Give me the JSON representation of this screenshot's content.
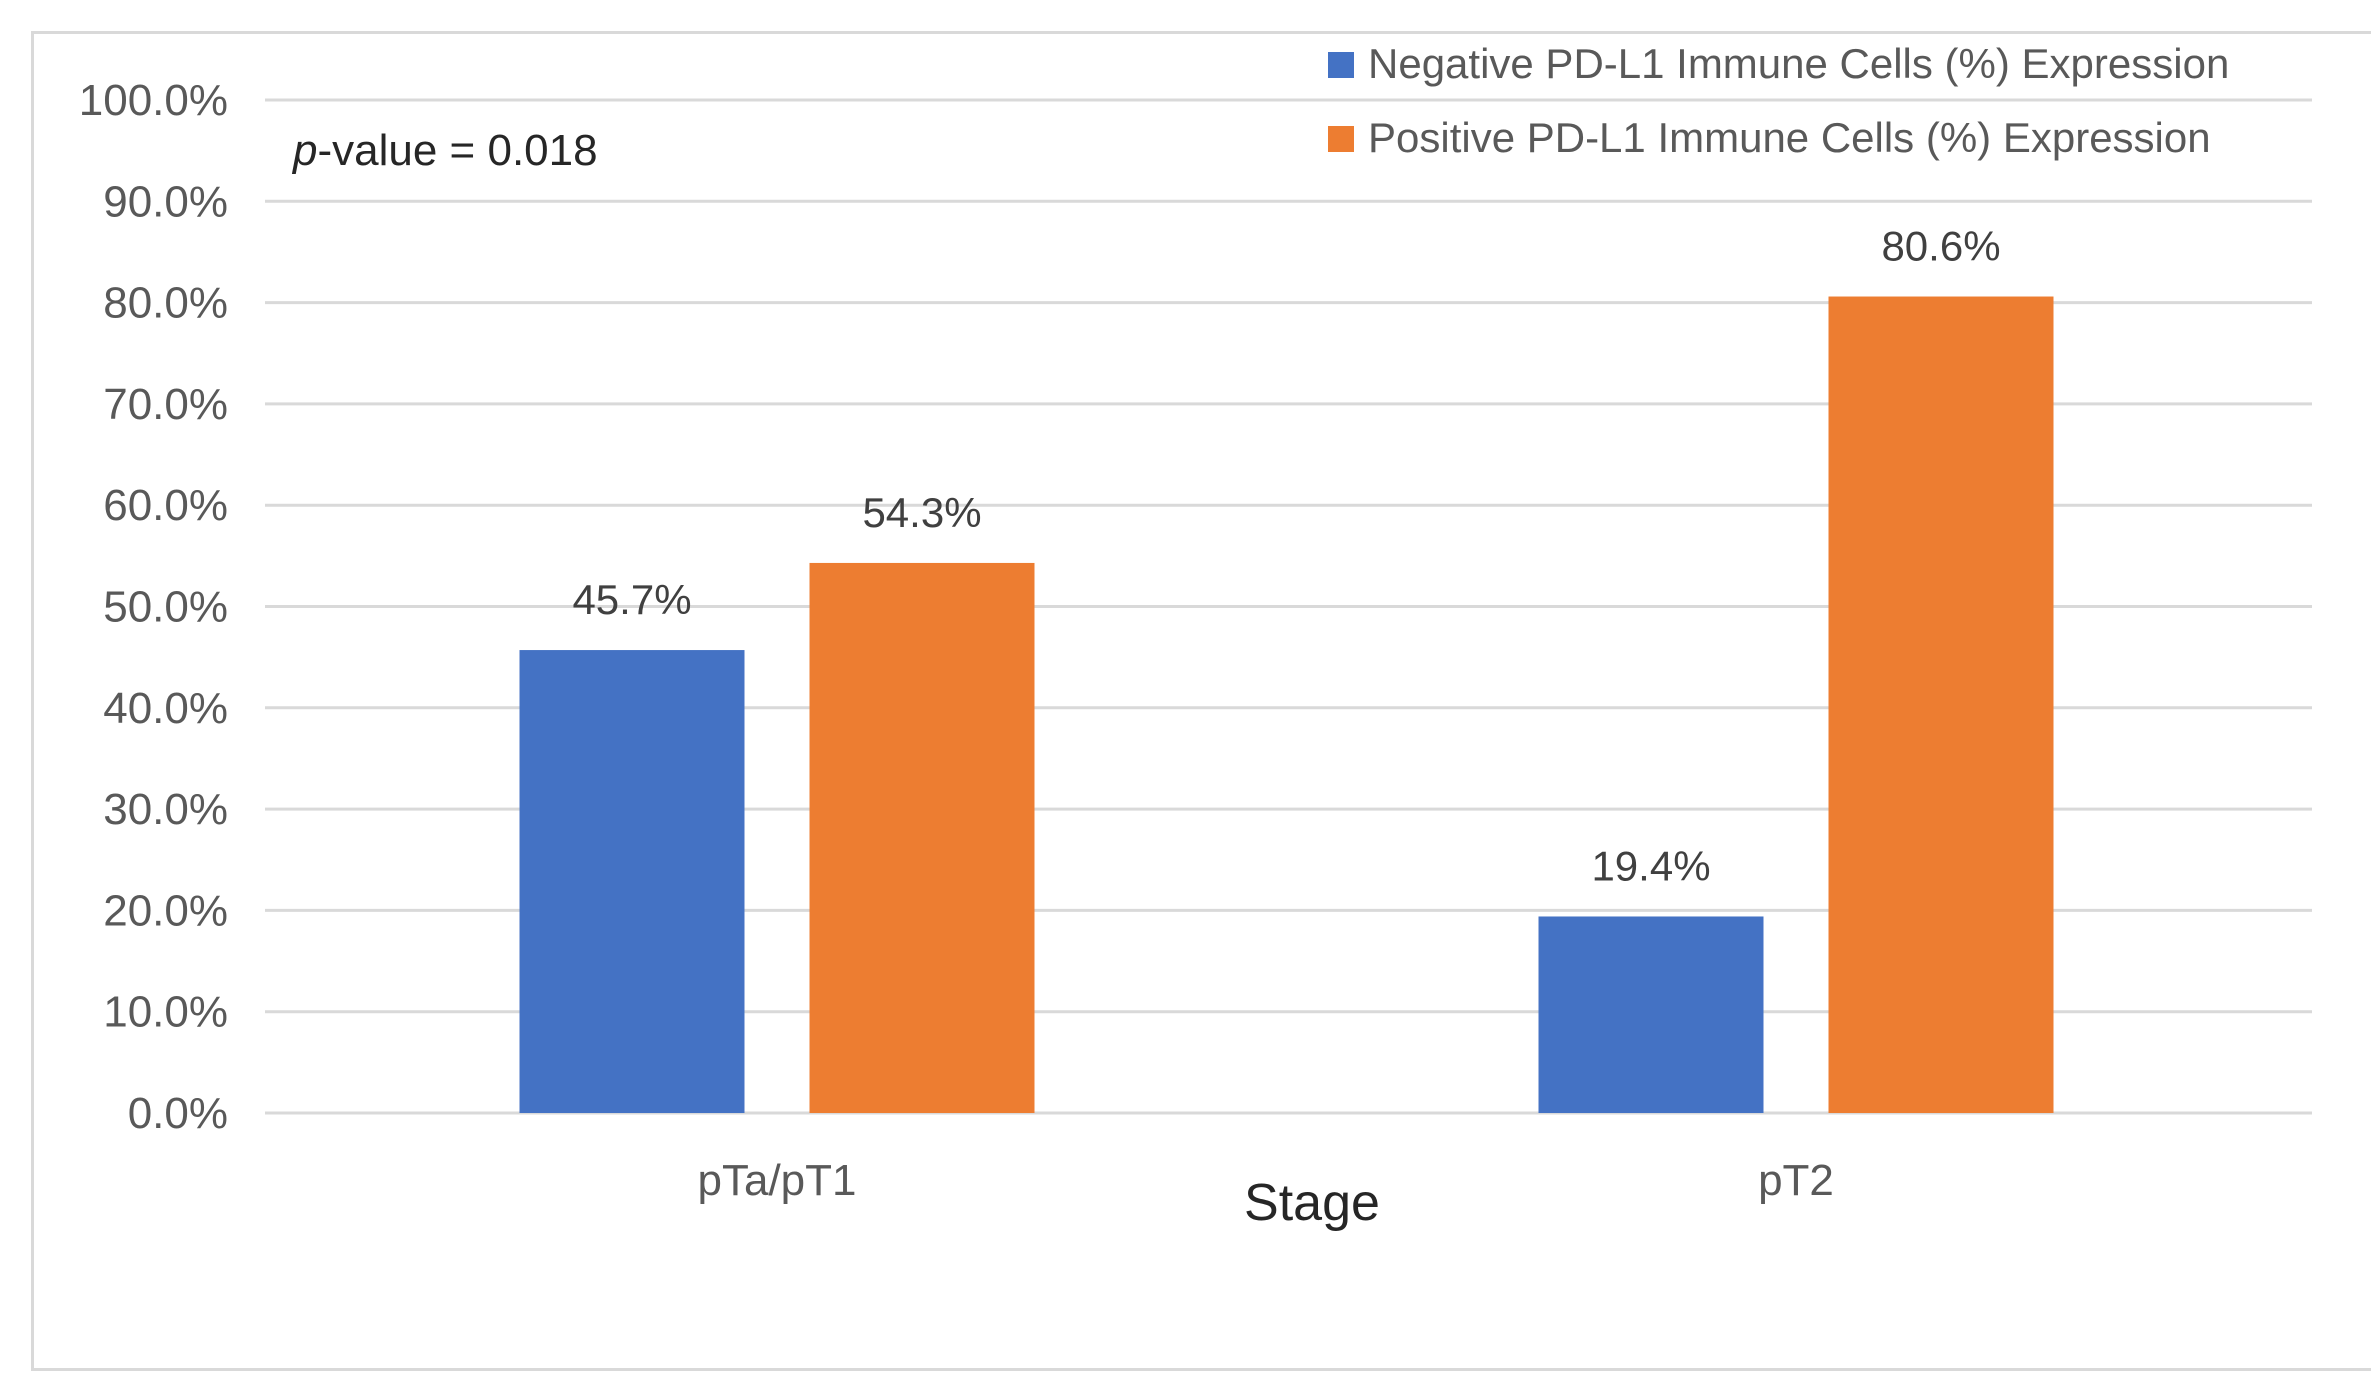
{
  "chart_data": {
    "type": "bar",
    "title": "",
    "xlabel": "Stage",
    "ylabel": "",
    "categories": [
      "pTa/pT1",
      "pT2"
    ],
    "series": [
      {
        "name": "Negative PD-L1 Immune Cells (%) Expression",
        "color": "#4472C4",
        "values": [
          45.7,
          19.4
        ],
        "labels": [
          "45.7%",
          "19.4%"
        ]
      },
      {
        "name": "Positive PD-L1 Immune Cells (%) Expression",
        "color": "#ED7D31",
        "values": [
          54.3,
          80.6
        ],
        "labels": [
          "54.3%",
          "80.6%"
        ]
      }
    ],
    "ylim": [
      0,
      100
    ],
    "yticks": [
      0,
      10,
      20,
      30,
      40,
      50,
      60,
      70,
      80,
      90,
      100
    ],
    "ytick_labels": [
      "0.0%",
      "10.0%",
      "20.0%",
      "30.0%",
      "40.0%",
      "50.0%",
      "60.0%",
      "70.0%",
      "80.0%",
      "90.0%",
      "100.0%"
    ],
    "grid": true,
    "legend_position": "top-right",
    "annotation": {
      "italic": "p",
      "text": "-value = 0.018"
    }
  }
}
